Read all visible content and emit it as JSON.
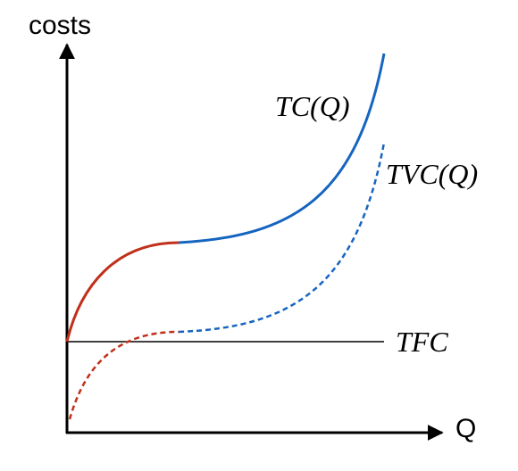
{
  "y_axis": {
    "label": "costs"
  },
  "x_axis": {
    "label": "Q"
  },
  "curves": [
    {
      "label": "TC(Q)"
    },
    {
      "label": "TVC(Q)"
    },
    {
      "label": "TFC"
    }
  ]
}
